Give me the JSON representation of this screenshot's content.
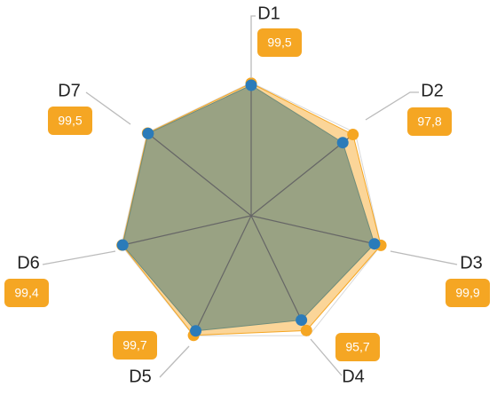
{
  "chart_data": {
    "type": "radar",
    "categories": [
      "D1",
      "D2",
      "D3",
      "D4",
      "D5",
      "D6",
      "D7"
    ],
    "rlim": [
      0,
      100
    ],
    "grid": true,
    "series": [
      {
        "color": "#f5a623",
        "values": [
          99.5,
          97.8,
          99.9,
          95.7,
          99.7,
          99.4,
          99.5
        ],
        "value_labels": [
          "99,5",
          "97,8",
          "99,9",
          "95,7",
          "99,7",
          "99,4",
          "99,5"
        ]
      },
      {
        "color": "#2b7bb9",
        "values": [
          98,
          88,
          95,
          87,
          96,
          99,
          99
        ]
      }
    ]
  }
}
